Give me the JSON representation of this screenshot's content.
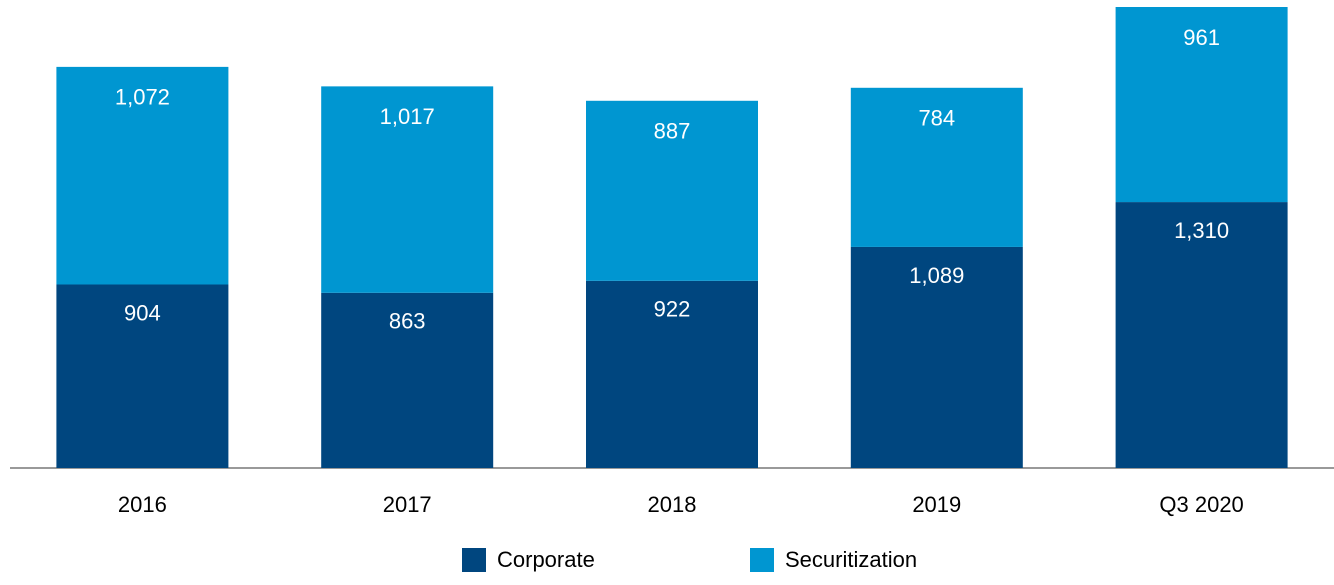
{
  "chart_data": {
    "type": "stacked_bar",
    "categories": [
      "2016",
      "2017",
      "2018",
      "2019",
      "Q3 2020"
    ],
    "series": [
      {
        "name": "Corporate",
        "color": "#00467f",
        "values": [
          904,
          863,
          922,
          1089,
          1310
        ],
        "value_labels": [
          "904",
          "863",
          "922",
          "1,089",
          "1,310"
        ]
      },
      {
        "name": "Securitization",
        "color": "#0096d1",
        "values": [
          1072,
          1017,
          887,
          784,
          961
        ],
        "value_labels": [
          "1,072",
          "1,017",
          "887",
          "784",
          "961"
        ]
      }
    ],
    "legend": "bottom"
  }
}
